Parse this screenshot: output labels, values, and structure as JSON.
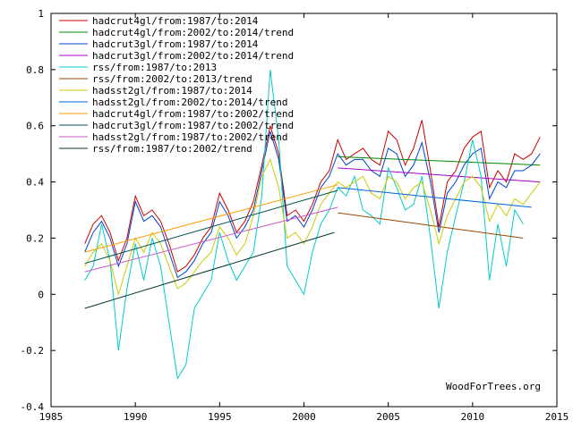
{
  "chart_data": {
    "type": "line",
    "title": "",
    "xlabel": "",
    "ylabel": "",
    "xlim": [
      1985,
      2015
    ],
    "ylim": [
      -0.4,
      1.0
    ],
    "x_ticks": [
      1985,
      1990,
      1995,
      2000,
      2005,
      2010,
      2015
    ],
    "y_ticks": [
      -0.4,
      -0.2,
      0,
      0.2,
      0.4,
      0.6,
      0.8,
      1
    ],
    "x_tick_labels": [
      "1985",
      "1990",
      "1995",
      "2000",
      "2005",
      "2010",
      "2015"
    ],
    "y_tick_labels": [
      "-0.4",
      "-0.2",
      "0",
      "0.2",
      "0.4",
      "0.6",
      "0.8",
      "1"
    ],
    "legend_position": "top-left",
    "watermark": "WoodForTrees.org",
    "series": [
      {
        "name": "hadcrut4gl/from:1987/to:2014",
        "color": "#cc0000",
        "kind": "monthly",
        "x": [
          1987.0,
          1987.5,
          1988.0,
          1988.5,
          1989.0,
          1989.5,
          1990.0,
          1990.5,
          1991.0,
          1991.5,
          1992.0,
          1992.5,
          1993.0,
          1993.5,
          1994.0,
          1994.5,
          1995.0,
          1995.5,
          1996.0,
          1996.5,
          1997.0,
          1997.5,
          1998.0,
          1998.5,
          1999.0,
          1999.5,
          2000.0,
          2000.5,
          2001.0,
          2001.5,
          2002.0,
          2002.5,
          2003.0,
          2003.5,
          2004.0,
          2004.5,
          2005.0,
          2005.5,
          2006.0,
          2006.5,
          2007.0,
          2007.5,
          2008.0,
          2008.5,
          2009.0,
          2009.5,
          2010.0,
          2010.5,
          2011.0,
          2011.5,
          2012.0,
          2012.5,
          2013.0,
          2013.5,
          2014.0
        ],
        "y": [
          0.18,
          0.25,
          0.28,
          0.22,
          0.12,
          0.2,
          0.35,
          0.28,
          0.3,
          0.26,
          0.18,
          0.08,
          0.1,
          0.14,
          0.2,
          0.24,
          0.36,
          0.3,
          0.22,
          0.26,
          0.33,
          0.46,
          0.6,
          0.5,
          0.28,
          0.3,
          0.26,
          0.32,
          0.4,
          0.44,
          0.55,
          0.48,
          0.5,
          0.52,
          0.48,
          0.46,
          0.58,
          0.55,
          0.46,
          0.52,
          0.62,
          0.44,
          0.24,
          0.4,
          0.44,
          0.52,
          0.56,
          0.58,
          0.38,
          0.44,
          0.4,
          0.5,
          0.48,
          0.5,
          0.56
        ]
      },
      {
        "name": "hadcrut4gl/from:2002/to:2014/trend",
        "color": "#008800",
        "kind": "trend",
        "x": [
          2002.0,
          2014.0
        ],
        "y": [
          0.49,
          0.46
        ]
      },
      {
        "name": "hadcrut3gl/from:1987/to:2014",
        "color": "#0044cc",
        "kind": "monthly",
        "x": [
          1987.0,
          1987.5,
          1988.0,
          1988.5,
          1989.0,
          1989.5,
          1990.0,
          1990.5,
          1991.0,
          1991.5,
          1992.0,
          1992.5,
          1993.0,
          1993.5,
          1994.0,
          1994.5,
          1995.0,
          1995.5,
          1996.0,
          1996.5,
          1997.0,
          1997.5,
          1998.0,
          1998.5,
          1999.0,
          1999.5,
          2000.0,
          2000.5,
          2001.0,
          2001.5,
          2002.0,
          2002.5,
          2003.0,
          2003.5,
          2004.0,
          2004.5,
          2005.0,
          2005.5,
          2006.0,
          2006.5,
          2007.0,
          2007.5,
          2008.0,
          2008.5,
          2009.0,
          2009.5,
          2010.0,
          2010.5,
          2011.0,
          2011.5,
          2012.0,
          2012.5,
          2013.0,
          2013.5,
          2014.0
        ],
        "y": [
          0.15,
          0.22,
          0.26,
          0.2,
          0.1,
          0.18,
          0.33,
          0.26,
          0.28,
          0.24,
          0.15,
          0.06,
          0.08,
          0.12,
          0.18,
          0.22,
          0.33,
          0.28,
          0.2,
          0.24,
          0.3,
          0.44,
          0.58,
          0.48,
          0.26,
          0.28,
          0.24,
          0.3,
          0.38,
          0.42,
          0.5,
          0.46,
          0.48,
          0.48,
          0.44,
          0.42,
          0.52,
          0.5,
          0.42,
          0.46,
          0.54,
          0.4,
          0.22,
          0.36,
          0.4,
          0.46,
          0.5,
          0.52,
          0.34,
          0.4,
          0.38,
          0.44,
          0.44,
          0.46,
          0.5
        ]
      },
      {
        "name": "hadcrut3gl/from:2002/to:2014/trend",
        "color": "#aa00cc",
        "kind": "trend",
        "x": [
          2002.0,
          2014.0
        ],
        "y": [
          0.45,
          0.4
        ]
      },
      {
        "name": "rss/from:1987/to:2013",
        "color": "#00cccc",
        "kind": "monthly",
        "x": [
          1987.0,
          1987.5,
          1988.0,
          1988.5,
          1989.0,
          1989.5,
          1990.0,
          1990.5,
          1991.0,
          1991.5,
          1992.0,
          1992.5,
          1993.0,
          1993.5,
          1994.0,
          1994.5,
          1995.0,
          1995.5,
          1996.0,
          1996.5,
          1997.0,
          1997.5,
          1998.0,
          1998.5,
          1999.0,
          1999.5,
          2000.0,
          2000.5,
          2001.0,
          2001.5,
          2002.0,
          2002.5,
          2003.0,
          2003.5,
          2004.0,
          2004.5,
          2005.0,
          2005.5,
          2006.0,
          2006.5,
          2007.0,
          2007.5,
          2008.0,
          2008.5,
          2009.0,
          2009.5,
          2010.0,
          2010.5,
          2011.0,
          2011.5,
          2012.0,
          2012.5,
          2013.0
        ],
        "y": [
          0.05,
          0.1,
          0.25,
          0.12,
          -0.2,
          0.02,
          0.18,
          0.05,
          0.2,
          0.1,
          -0.1,
          -0.3,
          -0.25,
          -0.05,
          0.0,
          0.05,
          0.22,
          0.12,
          0.05,
          0.1,
          0.15,
          0.35,
          0.8,
          0.55,
          0.1,
          0.05,
          0.0,
          0.15,
          0.25,
          0.3,
          0.38,
          0.35,
          0.42,
          0.3,
          0.28,
          0.25,
          0.45,
          0.38,
          0.3,
          0.32,
          0.42,
          0.2,
          -0.05,
          0.15,
          0.28,
          0.4,
          0.55,
          0.42,
          0.05,
          0.25,
          0.1,
          0.3,
          0.25
        ]
      },
      {
        "name": "rss/from:2002/to:2013/trend",
        "color": "#994400",
        "kind": "trend",
        "x": [
          2002.0,
          2013.0
        ],
        "y": [
          0.29,
          0.2
        ]
      },
      {
        "name": "hadsst2gl/from:1987/to:2014",
        "color": "#cccc00",
        "kind": "monthly",
        "x": [
          1987.0,
          1987.5,
          1988.0,
          1988.5,
          1989.0,
          1989.5,
          1990.0,
          1990.5,
          1991.0,
          1991.5,
          1992.0,
          1992.5,
          1993.0,
          1993.5,
          1994.0,
          1994.5,
          1995.0,
          1995.5,
          1996.0,
          1996.5,
          1997.0,
          1997.5,
          1998.0,
          1998.5,
          1999.0,
          1999.5,
          2000.0,
          2000.5,
          2001.0,
          2001.5,
          2002.0,
          2002.5,
          2003.0,
          2003.5,
          2004.0,
          2004.5,
          2005.0,
          2005.5,
          2006.0,
          2006.5,
          2007.0,
          2007.5,
          2008.0,
          2008.5,
          2009.0,
          2009.5,
          2010.0,
          2010.5,
          2011.0,
          2011.5,
          2012.0,
          2012.5,
          2013.0,
          2013.5,
          2014.0
        ],
        "y": [
          0.1,
          0.15,
          0.18,
          0.12,
          0.0,
          0.1,
          0.2,
          0.15,
          0.22,
          0.18,
          0.1,
          0.02,
          0.04,
          0.08,
          0.12,
          0.15,
          0.24,
          0.2,
          0.14,
          0.18,
          0.28,
          0.42,
          0.48,
          0.38,
          0.2,
          0.22,
          0.18,
          0.24,
          0.32,
          0.36,
          0.4,
          0.38,
          0.4,
          0.42,
          0.36,
          0.34,
          0.42,
          0.4,
          0.34,
          0.38,
          0.4,
          0.3,
          0.18,
          0.28,
          0.34,
          0.4,
          0.42,
          0.38,
          0.26,
          0.32,
          0.28,
          0.34,
          0.32,
          0.36,
          0.4
        ]
      },
      {
        "name": "hadsst2gl/from:2002/to:2014/trend",
        "color": "#0066dd",
        "kind": "trend",
        "x": [
          2002.0,
          2013.5
        ],
        "y": [
          0.38,
          0.31
        ]
      },
      {
        "name": "hadcrut4gl/from:1987/to:2002/trend",
        "color": "#ff9900",
        "kind": "trend",
        "x": [
          1987.0,
          2002.0
        ],
        "y": [
          0.15,
          0.39
        ]
      },
      {
        "name": "hadcrut3gl/from:1987/to:2002/trend",
        "color": "#005555",
        "kind": "trend",
        "x": [
          1987.0,
          2002.0
        ],
        "y": [
          0.11,
          0.37
        ]
      },
      {
        "name": "hadsst2gl/from:1987/to:2002/trend",
        "color": "#cc55cc",
        "kind": "trend",
        "x": [
          1987.0,
          2002.0
        ],
        "y": [
          0.08,
          0.31
        ]
      },
      {
        "name": "rss/from:1987/to:2002/trend",
        "color": "#003333",
        "kind": "trend",
        "x": [
          1987.0,
          2001.8
        ],
        "y": [
          -0.05,
          0.22
        ]
      }
    ]
  }
}
